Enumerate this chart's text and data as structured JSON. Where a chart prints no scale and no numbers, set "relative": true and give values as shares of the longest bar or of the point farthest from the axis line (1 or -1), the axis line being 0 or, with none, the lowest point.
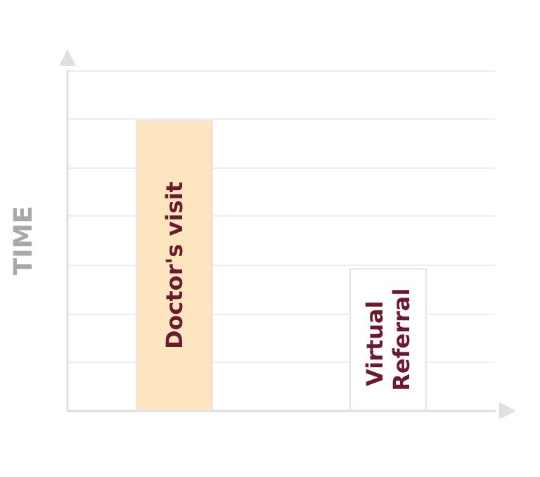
{
  "chart_data": {
    "type": "bar",
    "relative": true,
    "ylabel": "TIME",
    "categories": [
      "Doctor's visit",
      "Virtual Referral"
    ],
    "values": [
      1,
      0.49
    ],
    "colors": [
      "#fde5bf",
      "#ffffff"
    ],
    "grid": "y",
    "tick_labels": false
  }
}
